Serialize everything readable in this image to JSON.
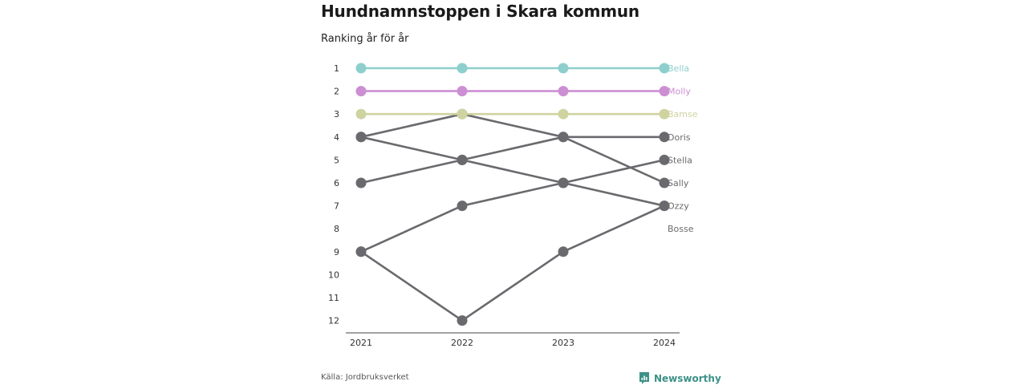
{
  "title": "Hundnamnstoppen i Skara kommun",
  "subtitle": "Ranking år för år",
  "source": "Källa: Jordbruksverket",
  "brand": "Newsworthy",
  "chart_data": {
    "type": "line",
    "x": [
      "2021",
      "2022",
      "2023",
      "2024"
    ],
    "y_ticks": [
      "1",
      "2",
      "3",
      "4",
      "5",
      "6",
      "7",
      "8",
      "9",
      "10",
      "11",
      "12"
    ],
    "ylim": [
      1,
      12
    ],
    "y_inverted": true,
    "grid": false,
    "series": [
      {
        "name": "Bella",
        "values": [
          1,
          1,
          1,
          1
        ],
        "color": "#8ecfcd",
        "highlight": true
      },
      {
        "name": "Molly",
        "values": [
          2,
          2,
          2,
          2
        ],
        "color": "#cc8fd3",
        "highlight": true
      },
      {
        "name": "Bamse",
        "values": [
          3,
          3,
          3,
          3
        ],
        "color": "#cfd3a0",
        "highlight": true
      },
      {
        "name": "Doris",
        "values": [
          4,
          3,
          4,
          4
        ],
        "color": "#6a6a6e",
        "highlight": false
      },
      {
        "name": "Stella",
        "values": [
          9,
          7,
          6,
          5
        ],
        "color": "#6a6a6e",
        "highlight": false
      },
      {
        "name": "Sally",
        "values": [
          6,
          5,
          4,
          6
        ],
        "color": "#6a6a6e",
        "highlight": false
      },
      {
        "name": "Ozzy",
        "values": [
          4,
          5,
          6,
          7
        ],
        "color": "#6a6a6e",
        "highlight": false
      },
      {
        "name": "Bosse",
        "values": [
          9,
          12,
          9,
          7
        ],
        "color": "#6a6a6e",
        "highlight": false
      }
    ],
    "end_labels": [
      "Bella",
      "Molly",
      "Bamse",
      "Doris",
      "Stella",
      "Sally",
      "Ozzy",
      "Bosse"
    ]
  }
}
